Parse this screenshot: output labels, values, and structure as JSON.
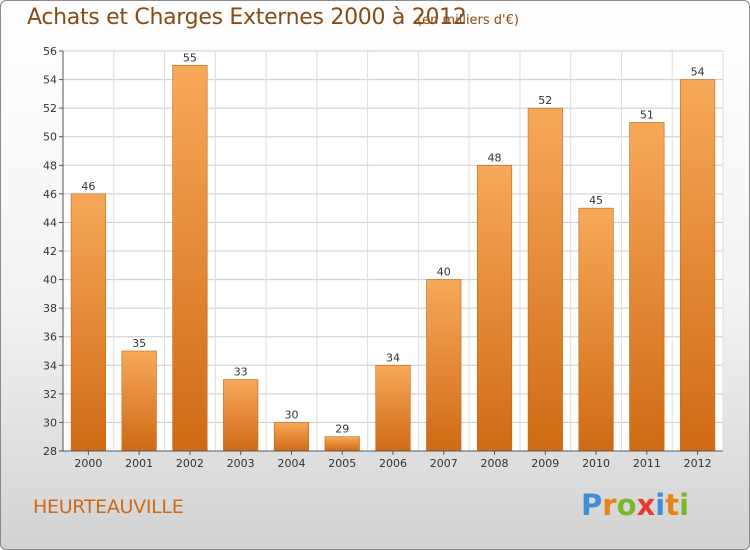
{
  "title": "Achats et Charges Externes 2000 à 2012",
  "subtitle": "(en milliers d'€)",
  "commune": "HEURTEAUVILLE",
  "brand": {
    "text": "Proxiti",
    "letters": [
      "P",
      "r",
      "o",
      "x",
      "i",
      "t",
      "i"
    ],
    "letter_colors": [
      "#3f8fd6",
      "#e8811a",
      "#79b82a",
      "#e83a2f",
      "#3f8fd6",
      "#e8811a",
      "#79b82a"
    ]
  },
  "colors": {
    "bar_top": "#f7a95a",
    "bar_bottom": "#d06a14",
    "title": "#8a4a14",
    "grid": "#cccccc"
  },
  "chart_data": {
    "type": "bar",
    "title": "Achats et Charges Externes 2000 à 2012",
    "subtitle": "(en milliers d'€)",
    "categories": [
      "2000",
      "2001",
      "2002",
      "2003",
      "2004",
      "2005",
      "2006",
      "2007",
      "2008",
      "2009",
      "2010",
      "2011",
      "2012"
    ],
    "values": [
      46,
      35,
      55,
      33,
      30,
      29,
      34,
      40,
      48,
      52,
      45,
      51,
      54
    ],
    "ylim": [
      28,
      56
    ],
    "yticks": [
      28,
      30,
      32,
      34,
      36,
      38,
      40,
      42,
      44,
      46,
      48,
      50,
      52,
      54,
      56
    ],
    "grid": true,
    "data_labels": true
  }
}
